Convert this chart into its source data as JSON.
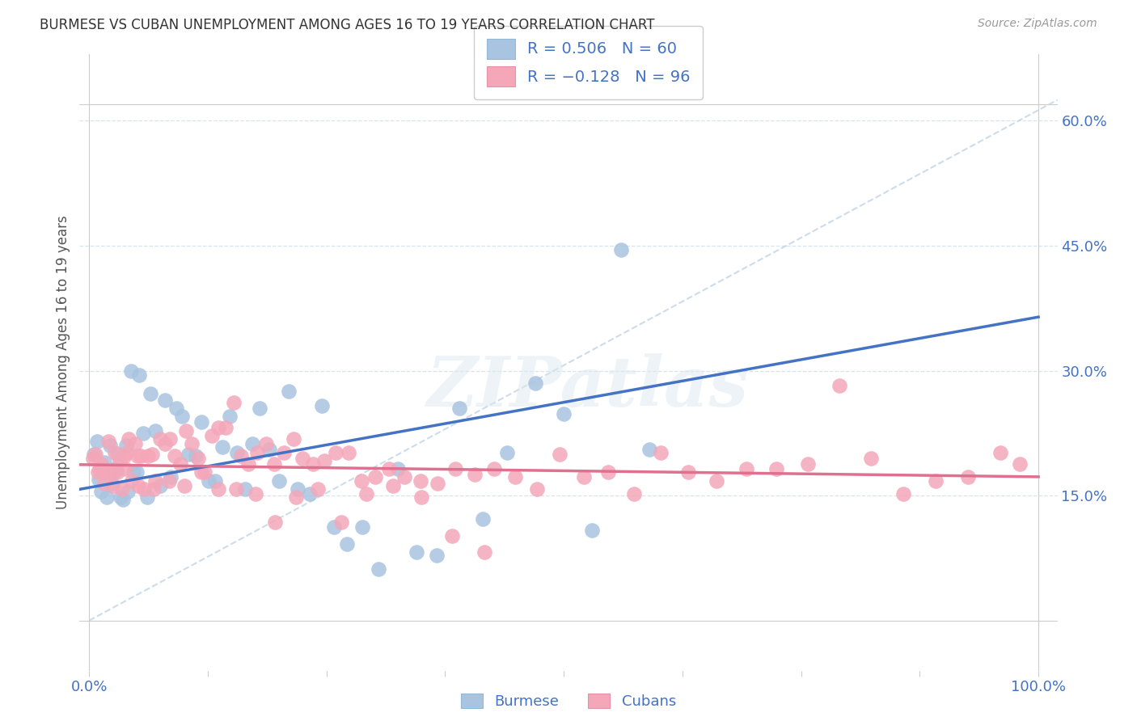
{
  "title": "BURMESE VS CUBAN UNEMPLOYMENT AMONG AGES 16 TO 19 YEARS CORRELATION CHART",
  "source": "Source: ZipAtlas.com",
  "ylabel": "Unemployment Among Ages 16 to 19 years",
  "xlim": [
    -0.01,
    1.02
  ],
  "ylim": [
    -0.06,
    0.68
  ],
  "burmese_R": 0.506,
  "burmese_N": 60,
  "cuban_R": -0.128,
  "cuban_N": 96,
  "burmese_color": "#a8c4e0",
  "cuban_color": "#f4a7b9",
  "burmese_line_color": "#4472c4",
  "cuban_line_color": "#e07090",
  "trend_color": "#c0d4e4",
  "watermark": "ZIPatlas",
  "bg_color": "#ffffff",
  "grid_color": "#d8e4ec",
  "border_color": "#cccccc",
  "tick_color": "#4472c4",
  "ylabel_color": "#555555",
  "title_color": "#333333",
  "source_color": "#999999",
  "burmese_x": [
    0.005,
    0.008,
    0.01,
    0.013,
    0.016,
    0.019,
    0.022,
    0.024,
    0.026,
    0.028,
    0.03,
    0.033,
    0.036,
    0.039,
    0.041,
    0.044,
    0.047,
    0.05,
    0.053,
    0.057,
    0.061,
    0.065,
    0.07,
    0.075,
    0.08,
    0.086,
    0.092,
    0.098,
    0.105,
    0.112,
    0.118,
    0.126,
    0.133,
    0.14,
    0.148,
    0.156,
    0.164,
    0.172,
    0.18,
    0.19,
    0.2,
    0.21,
    0.22,
    0.232,
    0.245,
    0.258,
    0.272,
    0.288,
    0.305,
    0.325,
    0.345,
    0.366,
    0.39,
    0.415,
    0.44,
    0.47,
    0.5,
    0.53,
    0.56,
    0.59
  ],
  "burmese_y": [
    0.2,
    0.215,
    0.17,
    0.155,
    0.19,
    0.148,
    0.21,
    0.165,
    0.178,
    0.182,
    0.2,
    0.148,
    0.145,
    0.21,
    0.155,
    0.3,
    0.178,
    0.178,
    0.295,
    0.225,
    0.148,
    0.272,
    0.228,
    0.162,
    0.265,
    0.172,
    0.255,
    0.245,
    0.2,
    0.198,
    0.238,
    0.168,
    0.168,
    0.208,
    0.245,
    0.202,
    0.158,
    0.212,
    0.255,
    0.205,
    0.168,
    0.275,
    0.158,
    0.152,
    0.258,
    0.112,
    0.092,
    0.112,
    0.062,
    0.182,
    0.082,
    0.078,
    0.255,
    0.122,
    0.202,
    0.285,
    0.248,
    0.108,
    0.445,
    0.205
  ],
  "cuban_x": [
    0.004,
    0.007,
    0.009,
    0.011,
    0.013,
    0.016,
    0.018,
    0.02,
    0.022,
    0.025,
    0.027,
    0.03,
    0.032,
    0.035,
    0.037,
    0.04,
    0.042,
    0.045,
    0.048,
    0.051,
    0.054,
    0.058,
    0.062,
    0.066,
    0.07,
    0.075,
    0.08,
    0.085,
    0.09,
    0.096,
    0.102,
    0.108,
    0.115,
    0.122,
    0.129,
    0.136,
    0.144,
    0.152,
    0.16,
    0.168,
    0.177,
    0.186,
    0.195,
    0.205,
    0.215,
    0.225,
    0.236,
    0.248,
    0.26,
    0.273,
    0.287,
    0.301,
    0.316,
    0.332,
    0.349,
    0.367,
    0.386,
    0.406,
    0.427,
    0.449,
    0.472,
    0.496,
    0.521,
    0.547,
    0.574,
    0.602,
    0.631,
    0.661,
    0.692,
    0.724,
    0.757,
    0.79,
    0.824,
    0.858,
    0.892,
    0.926,
    0.96,
    0.98,
    0.038,
    0.052,
    0.068,
    0.084,
    0.1,
    0.118,
    0.136,
    0.155,
    0.175,
    0.196,
    0.218,
    0.241,
    0.266,
    0.292,
    0.32,
    0.35,
    0.382,
    0.416
  ],
  "cuban_y": [
    0.195,
    0.2,
    0.178,
    0.182,
    0.188,
    0.165,
    0.178,
    0.215,
    0.178,
    0.162,
    0.202,
    0.178,
    0.192,
    0.158,
    0.198,
    0.202,
    0.218,
    0.168,
    0.212,
    0.198,
    0.198,
    0.158,
    0.198,
    0.2,
    0.168,
    0.218,
    0.212,
    0.218,
    0.198,
    0.188,
    0.228,
    0.212,
    0.195,
    0.178,
    0.222,
    0.232,
    0.232,
    0.262,
    0.198,
    0.188,
    0.202,
    0.212,
    0.188,
    0.202,
    0.218,
    0.195,
    0.188,
    0.192,
    0.202,
    0.202,
    0.168,
    0.172,
    0.182,
    0.172,
    0.168,
    0.165,
    0.182,
    0.175,
    0.182,
    0.172,
    0.158,
    0.2,
    0.172,
    0.178,
    0.152,
    0.202,
    0.178,
    0.168,
    0.182,
    0.182,
    0.188,
    0.282,
    0.195,
    0.152,
    0.168,
    0.172,
    0.202,
    0.188,
    0.182,
    0.162,
    0.158,
    0.168,
    0.162,
    0.178,
    0.158,
    0.158,
    0.152,
    0.118,
    0.148,
    0.158,
    0.118,
    0.152,
    0.162,
    0.148,
    0.102,
    0.082
  ]
}
